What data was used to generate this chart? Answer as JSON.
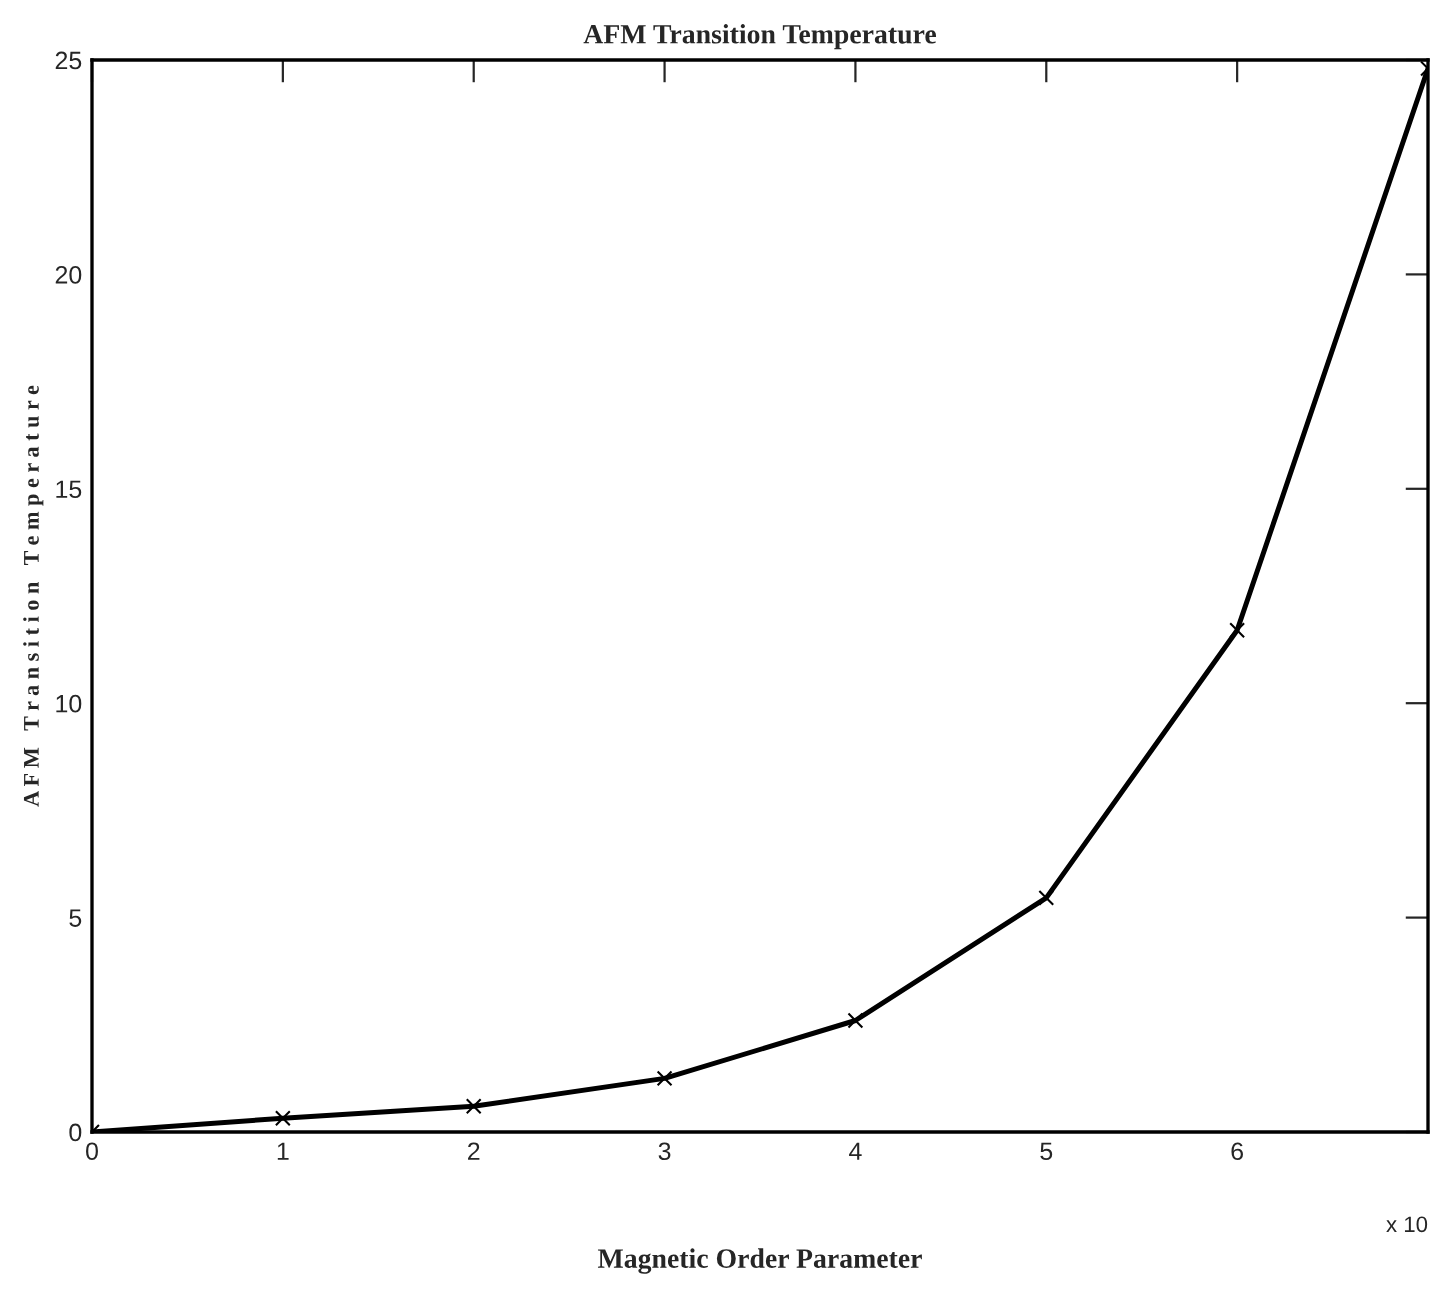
{
  "chart_data": {
    "type": "line",
    "title": "AFM Transition Temperature",
    "xlabel": "Magnetic Order Parameter",
    "ylabel": "A F M   T r a n s i t i o n   T e m p e r a t u r e",
    "x": [
      0,
      1,
      2,
      3,
      4,
      5,
      6,
      7
    ],
    "series": [
      {
        "color": "#000000",
        "values": [
          0,
          0.32,
          0.6,
          1.25,
          2.6,
          5.46,
          11.7,
          24.8
        ]
      }
    ],
    "xlim": [
      0,
      7
    ],
    "xticks": [
      0,
      1,
      2,
      3,
      4,
      5,
      6
    ],
    "ylim": [
      0,
      25
    ],
    "yticks": [
      0,
      5,
      10,
      15,
      20,
      25
    ],
    "marker": "cross",
    "line_style": "solid",
    "grid": false,
    "legend": false,
    "annotations": [
      "x 10"
    ]
  }
}
